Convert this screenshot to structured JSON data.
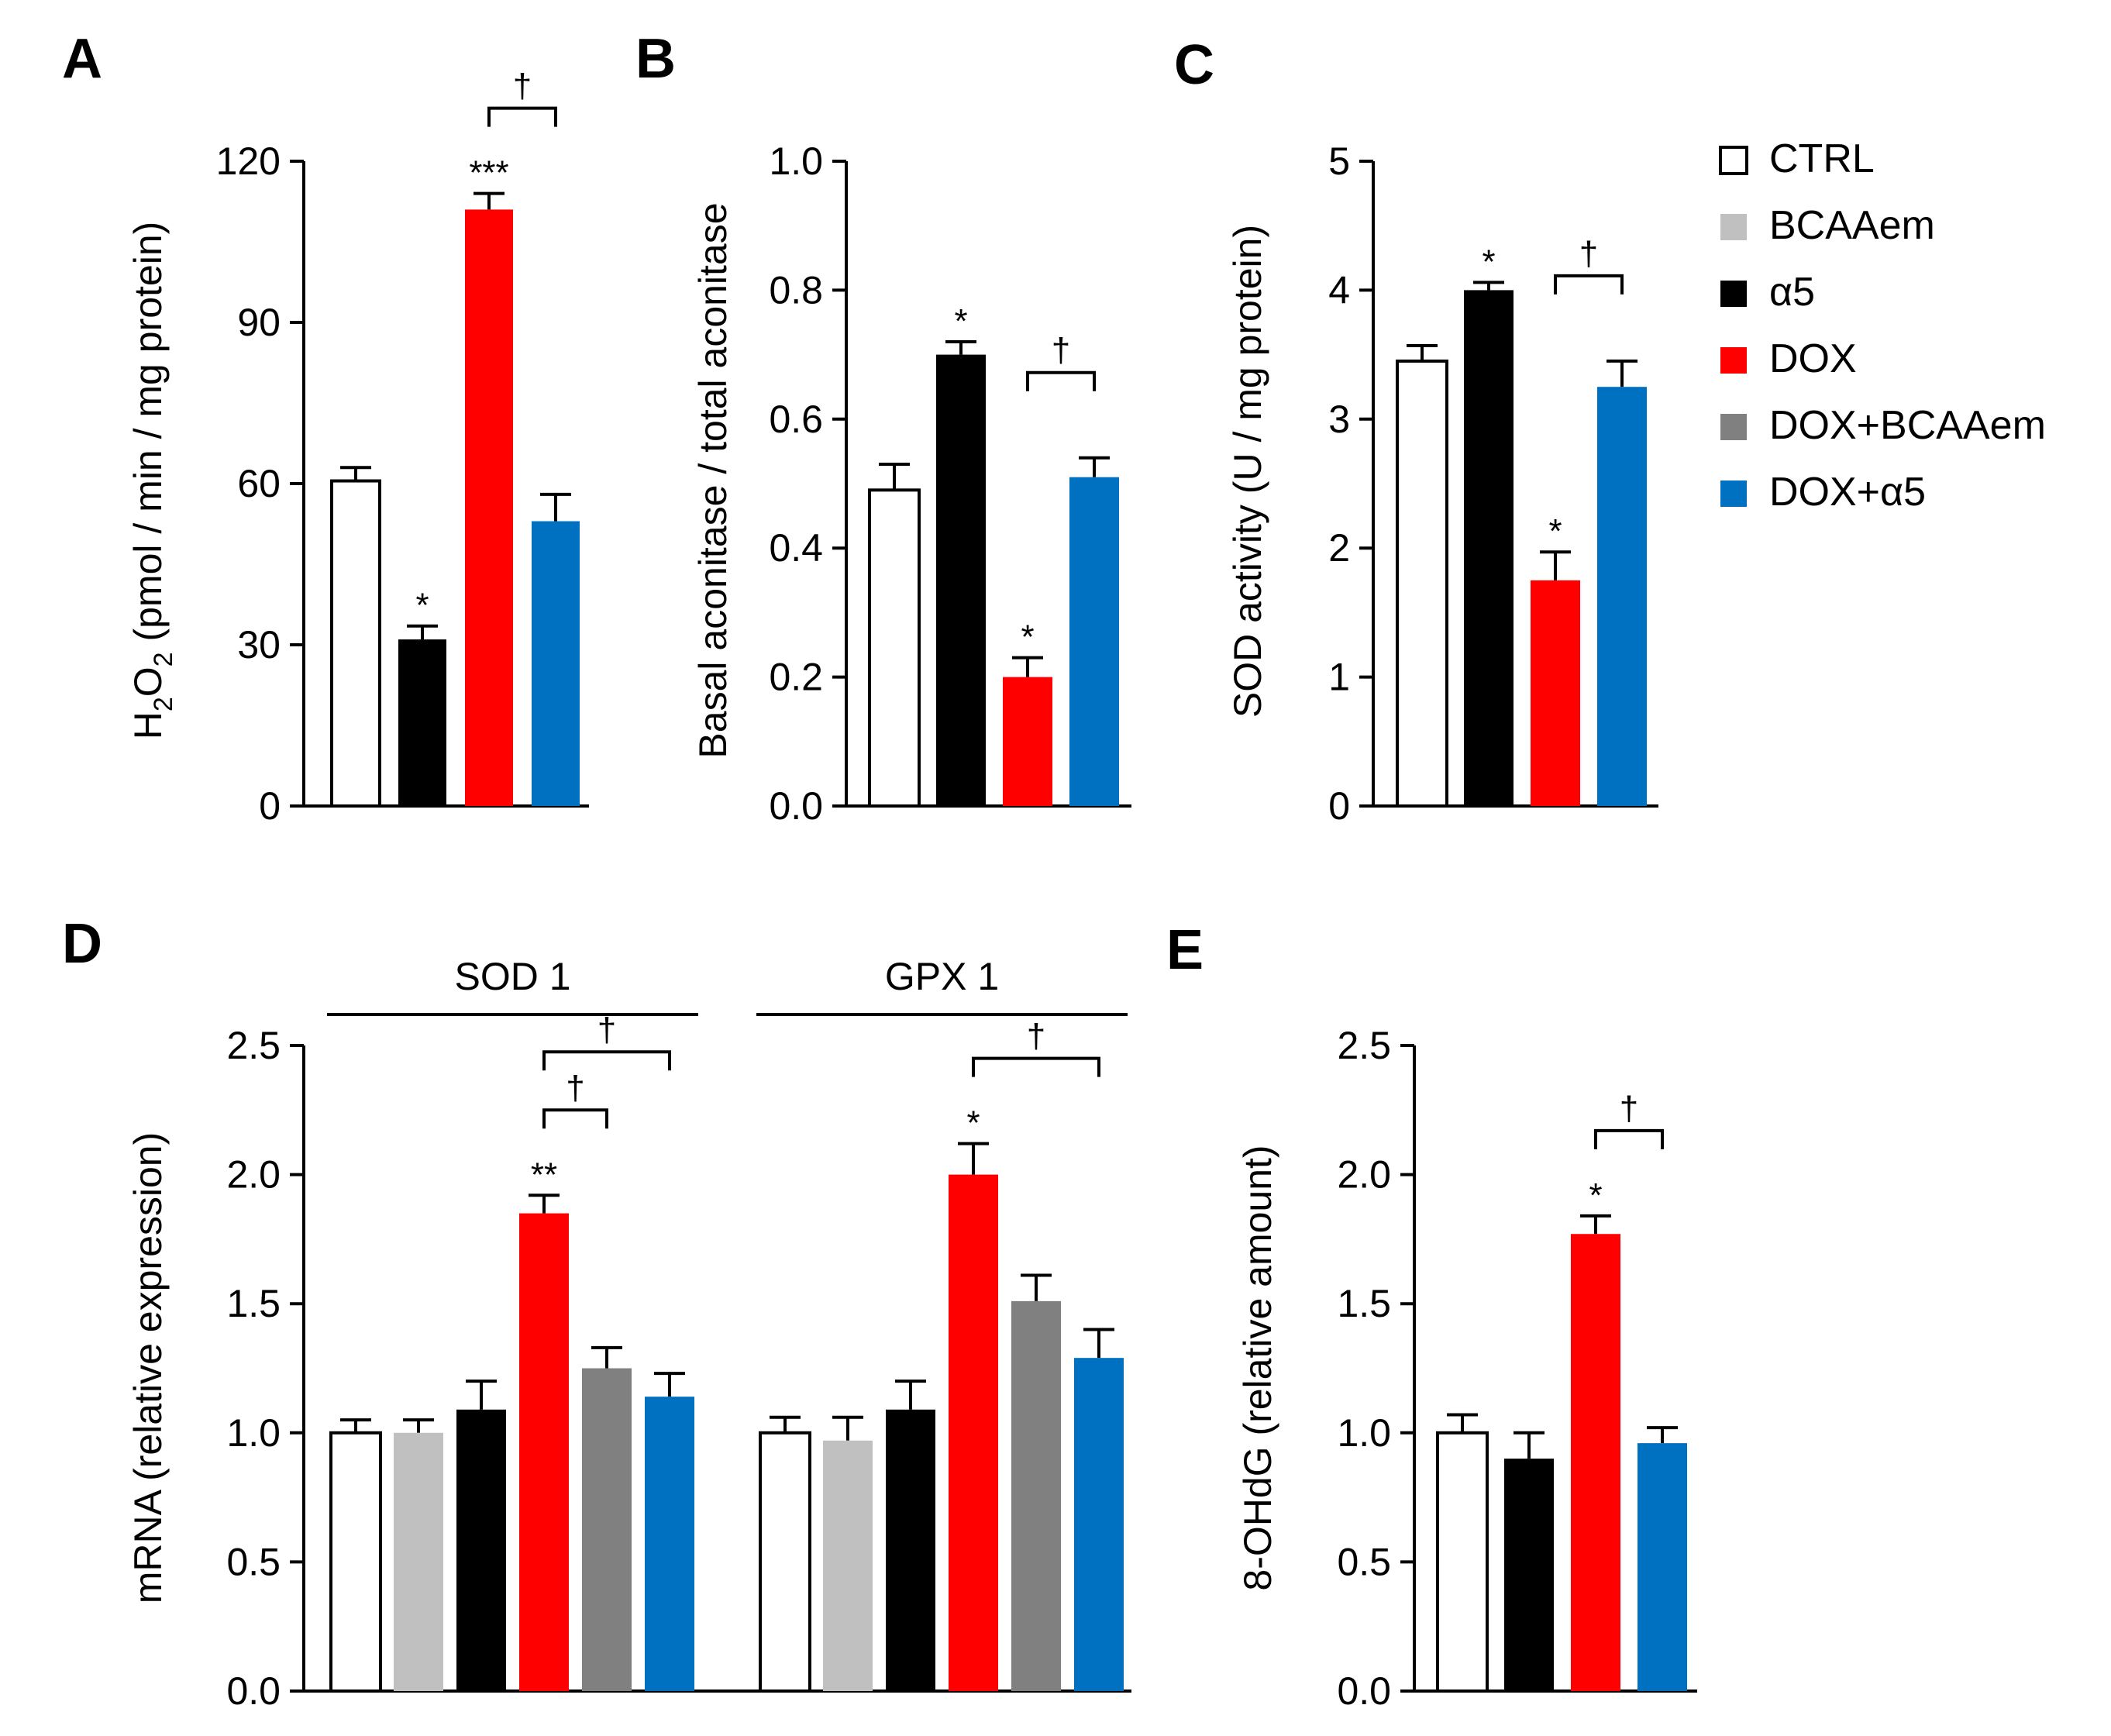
{
  "legend": [
    {
      "label": "CTRL",
      "color": "#ffffff",
      "outline": true
    },
    {
      "label": "BCAAem",
      "color": "#c0c0c0",
      "outline": false
    },
    {
      "label": "α5",
      "color": "#000000",
      "outline": false
    },
    {
      "label": "DOX",
      "color": "#ff0000",
      "outline": false
    },
    {
      "label": "DOX+BCAAem",
      "color": "#808080",
      "outline": false
    },
    {
      "label": "DOX+α5",
      "color": "#0070c0",
      "outline": false
    }
  ],
  "chart_data": [
    {
      "id": "A",
      "letter": "A",
      "type": "bar",
      "ylabel": "H2O2 (pmol / min / mg protein)",
      "ylabel_parts": {
        "base": "H",
        "sub1": "2",
        "mid": "O",
        "sub2": "2",
        "rest": " (pmol / min / mg protein)"
      },
      "ylim": [
        0,
        120
      ],
      "ticks": [
        0,
        30,
        60,
        90,
        120
      ],
      "tick_labels": [
        "0",
        "30",
        "60",
        "90",
        "120"
      ],
      "groups": [
        {
          "label": "",
          "bars": [
            {
              "series": "CTRL",
              "value": 60.5,
              "error": 2.5,
              "sig": ""
            },
            {
              "series": "α5",
              "value": 31,
              "error": 2.5,
              "sig": "*"
            },
            {
              "series": "DOX",
              "value": 111,
              "error": 3,
              "sig": "***"
            },
            {
              "series": "DOX+α5",
              "value": 53,
              "error": 5,
              "sig": ""
            }
          ]
        }
      ],
      "brackets": [
        {
          "from": 2,
          "to": 3,
          "label": "†",
          "level": 0
        }
      ]
    },
    {
      "id": "B",
      "letter": "B",
      "type": "bar",
      "ylabel": "Basal aconitase / total aconitase",
      "ylim": [
        0,
        1.0
      ],
      "ticks": [
        0,
        0.2,
        0.4,
        0.6,
        0.8,
        1.0
      ],
      "tick_labels": [
        "0.0",
        "0.2",
        "0.4",
        "0.6",
        "0.8",
        "1.0"
      ],
      "groups": [
        {
          "label": "",
          "bars": [
            {
              "series": "CTRL",
              "value": 0.49,
              "error": 0.04,
              "sig": ""
            },
            {
              "series": "α5",
              "value": 0.7,
              "error": 0.02,
              "sig": "*"
            },
            {
              "series": "DOX",
              "value": 0.2,
              "error": 0.03,
              "sig": "*"
            },
            {
              "series": "DOX+α5",
              "value": 0.51,
              "error": 0.03,
              "sig": ""
            }
          ]
        }
      ],
      "brackets": [
        {
          "from": 2,
          "to": 3,
          "label": "†",
          "level": 0
        }
      ]
    },
    {
      "id": "C",
      "letter": "C",
      "type": "bar",
      "ylabel": "SOD activity (U / mg protein)",
      "ylim": [
        0,
        5
      ],
      "ticks": [
        0,
        1,
        2,
        3,
        4,
        5
      ],
      "tick_labels": [
        "0",
        "1",
        "2",
        "3",
        "4",
        "5"
      ],
      "groups": [
        {
          "label": "",
          "bars": [
            {
              "series": "CTRL",
              "value": 3.45,
              "error": 0.12,
              "sig": ""
            },
            {
              "series": "α5",
              "value": 4.0,
              "error": 0.06,
              "sig": "*"
            },
            {
              "series": "DOX",
              "value": 1.75,
              "error": 0.22,
              "sig": "*"
            },
            {
              "series": "DOX+α5",
              "value": 3.25,
              "error": 0.2,
              "sig": ""
            }
          ]
        }
      ],
      "brackets": [
        {
          "from": 2,
          "to": 3,
          "label": "†",
          "level": 0
        }
      ]
    },
    {
      "id": "D",
      "letter": "D",
      "type": "bar",
      "ylabel": "mRNA (relative expression)",
      "ylim": [
        0,
        2.5
      ],
      "ticks": [
        0,
        0.5,
        1.0,
        1.5,
        2.0,
        2.5
      ],
      "tick_labels": [
        "0.0",
        "0.5",
        "1.0",
        "1.5",
        "2.0",
        "2.5"
      ],
      "groups": [
        {
          "label": "SOD 1",
          "bars": [
            {
              "series": "CTRL",
              "value": 1.0,
              "error": 0.05,
              "sig": ""
            },
            {
              "series": "BCAAem",
              "value": 1.0,
              "error": 0.05,
              "sig": ""
            },
            {
              "series": "α5",
              "value": 1.09,
              "error": 0.11,
              "sig": ""
            },
            {
              "series": "DOX",
              "value": 1.85,
              "error": 0.07,
              "sig": "**"
            },
            {
              "series": "DOX+BCAAem",
              "value": 1.25,
              "error": 0.08,
              "sig": ""
            },
            {
              "series": "DOX+α5",
              "value": 1.14,
              "error": 0.09,
              "sig": ""
            }
          ]
        },
        {
          "label": "GPX 1",
          "bars": [
            {
              "series": "CTRL",
              "value": 1.0,
              "error": 0.06,
              "sig": ""
            },
            {
              "series": "BCAAem",
              "value": 0.97,
              "error": 0.09,
              "sig": ""
            },
            {
              "series": "α5",
              "value": 1.09,
              "error": 0.11,
              "sig": ""
            },
            {
              "series": "DOX",
              "value": 2.0,
              "error": 0.12,
              "sig": "*"
            },
            {
              "series": "DOX+BCAAem",
              "value": 1.51,
              "error": 0.1,
              "sig": ""
            },
            {
              "series": "DOX+α5",
              "value": 1.29,
              "error": 0.11,
              "sig": ""
            }
          ]
        }
      ],
      "brackets": [
        {
          "group": 0,
          "from": 3,
          "to": 4,
          "label": "†",
          "level": 0
        },
        {
          "group": 0,
          "from": 3,
          "to": 5,
          "label": "†",
          "level": 1
        },
        {
          "group": 1,
          "from": 3,
          "to": 5,
          "label": "†",
          "level": 0
        }
      ]
    },
    {
      "id": "E",
      "letter": "E",
      "type": "bar",
      "ylabel": "8-OHdG (relative amount)",
      "ylim": [
        0,
        2.5
      ],
      "ticks": [
        0,
        0.5,
        1.0,
        1.5,
        2.0,
        2.5
      ],
      "tick_labels": [
        "0.0",
        "0.5",
        "1.0",
        "1.5",
        "2.0",
        "2.5"
      ],
      "groups": [
        {
          "label": "",
          "bars": [
            {
              "series": "CTRL",
              "value": 1.0,
              "error": 0.07,
              "sig": ""
            },
            {
              "series": "α5",
              "value": 0.9,
              "error": 0.1,
              "sig": ""
            },
            {
              "series": "DOX",
              "value": 1.77,
              "error": 0.07,
              "sig": "*"
            },
            {
              "series": "DOX+α5",
              "value": 0.96,
              "error": 0.06,
              "sig": ""
            }
          ]
        }
      ],
      "brackets": [
        {
          "from": 2,
          "to": 3,
          "label": "†",
          "level": 0
        }
      ]
    }
  ]
}
